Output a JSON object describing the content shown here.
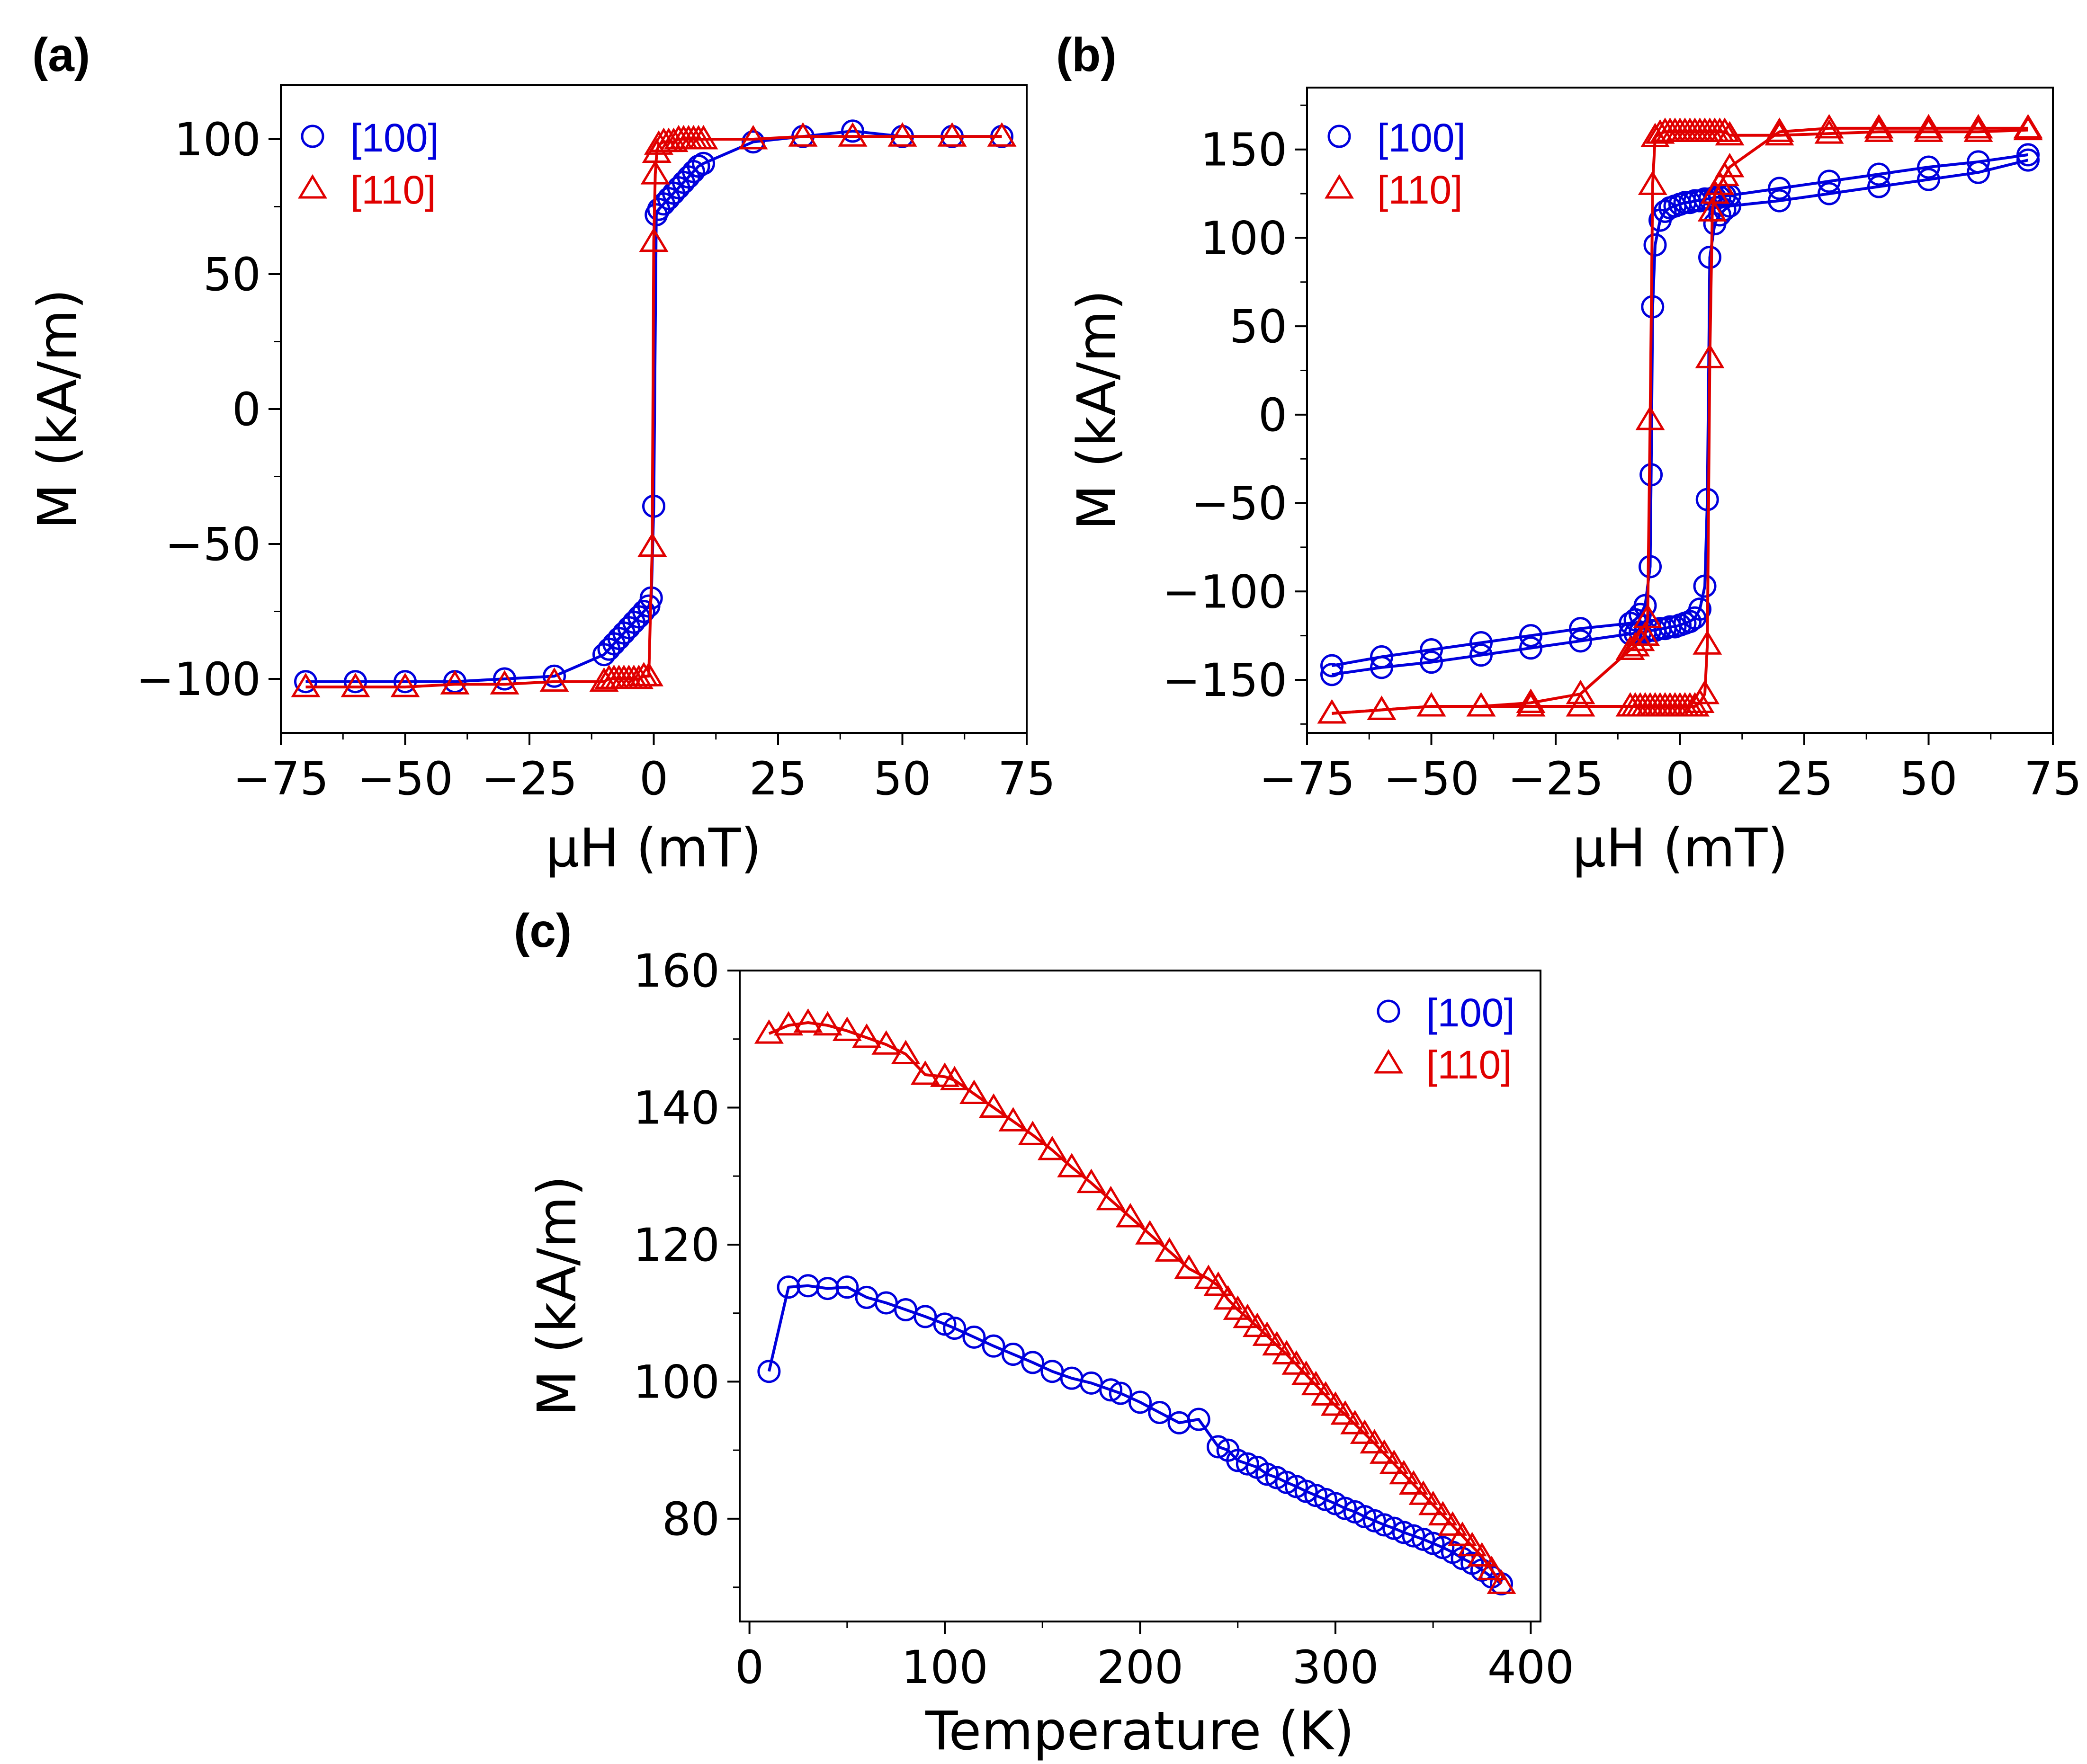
{
  "chart_data": [
    {
      "type": "line",
      "panel_label": "(a)",
      "xlabel": "μH (mT)",
      "ylabel": "M (kA/m)",
      "xlim": [
        -75,
        75
      ],
      "ylim": [
        -120,
        120
      ],
      "xticks": [
        -75,
        -50,
        -25,
        0,
        25,
        50,
        75
      ],
      "xtick_labels": [
        "−75",
        "−50",
        "−25",
        "0",
        "25",
        "50",
        "75"
      ],
      "yticks": [
        -100,
        -50,
        0,
        50,
        100
      ],
      "ytick_labels": [
        "−100",
        "−50",
        "0",
        "50",
        "100"
      ],
      "legend_position": "top-left",
      "series": [
        {
          "name": "[100]",
          "color": "#0000dd",
          "marker": "circle",
          "x": [
            -70,
            -60,
            -50,
            -40,
            -30,
            -20,
            -10,
            -9,
            -8,
            -7,
            -6,
            -5,
            -4,
            -3,
            -2,
            -1,
            -0.5,
            0,
            0.5,
            1,
            2,
            3,
            4,
            5,
            6,
            7,
            8,
            9,
            10,
            20,
            30,
            40,
            50,
            60,
            70
          ],
          "y": [
            -101,
            -101,
            -101,
            -101,
            -100,
            -99,
            -91,
            -89,
            -87,
            -85,
            -83,
            -81,
            -79,
            -77,
            -75,
            -73,
            -70,
            -36,
            72,
            74,
            76,
            78,
            80,
            82,
            84,
            86,
            88,
            90,
            91,
            99,
            101,
            103,
            101,
            101,
            101
          ]
        },
        {
          "name": "[110]",
          "color": "#e00000",
          "marker": "triangle",
          "x": [
            -70,
            -60,
            -50,
            -40,
            -30,
            -20,
            -10,
            -9,
            -8,
            -7,
            -6,
            -5,
            -4,
            -3,
            -2,
            -1,
            -0.3,
            0,
            0.3,
            0.6,
            1,
            2,
            3,
            4,
            5,
            6,
            7,
            8,
            9,
            10,
            20,
            30,
            40,
            50,
            60,
            70
          ],
          "y": [
            -103,
            -103,
            -103,
            -102,
            -102,
            -101,
            -101,
            -100,
            -100,
            -100,
            -100,
            -100,
            -100,
            -100,
            -99,
            -99,
            -51,
            62,
            87,
            95,
            98,
            99,
            99,
            99,
            100,
            100,
            100,
            100,
            100,
            100,
            100,
            101,
            101,
            101,
            101,
            101
          ]
        }
      ]
    },
    {
      "type": "line",
      "panel_label": "(b)",
      "xlabel": "μH (mT)",
      "ylabel": "M (kA/m)",
      "xlim": [
        -75,
        75
      ],
      "ylim": [
        -180,
        185
      ],
      "xticks": [
        -75,
        -50,
        -25,
        0,
        25,
        50,
        75
      ],
      "xtick_labels": [
        "−75",
        "−50",
        "−25",
        "0",
        "25",
        "50",
        "75"
      ],
      "yticks": [
        -150,
        -100,
        -50,
        0,
        50,
        100,
        150
      ],
      "ytick_labels": [
        "−150",
        "−100",
        "−50",
        "0",
        "50",
        "100",
        "150"
      ],
      "legend_position": "top-left",
      "series": [
        {
          "name": "[100]",
          "color": "#0000dd",
          "marker": "circle",
          "branches": [
            {
              "x": [
                70,
                60,
                50,
                40,
                30,
                20,
                10,
                9,
                8,
                7,
                6,
                5,
                4,
                3,
                2,
                1,
                0,
                -1,
                -2,
                -3,
                -4,
                -5,
                -5.5,
                -5.8,
                -6,
                -7,
                -8,
                -9,
                -10,
                -20,
                -30,
                -40,
                -50,
                -60,
                -70
              ],
              "y": [
                147,
                143,
                140,
                136,
                132,
                128,
                124,
                124,
                123,
                123,
                122,
                122,
                121,
                121,
                120,
                120,
                119,
                118,
                117,
                115,
                110,
                96,
                61,
                -34,
                -86,
                -108,
                -113,
                -116,
                -118,
                -121,
                -125,
                -129,
                -133,
                -137,
                -142
              ]
            },
            {
              "x": [
                -70,
                -60,
                -50,
                -40,
                -30,
                -20,
                -10,
                -9,
                -8,
                -7,
                -6,
                -5,
                -4,
                -3,
                -2,
                -1,
                0,
                1,
                2,
                3,
                4,
                5,
                5.5,
                6,
                7,
                8,
                9,
                10,
                20,
                30,
                40,
                50,
                60,
                70
              ],
              "y": [
                -147,
                -143,
                -140,
                -136,
                -132,
                -128,
                -124,
                -124,
                -123,
                -123,
                -122,
                -122,
                -121,
                -121,
                -120,
                -120,
                -119,
                -118,
                -117,
                -115,
                -110,
                -97,
                -48,
                89,
                108,
                113,
                116,
                118,
                121,
                125,
                129,
                133,
                137,
                144
              ]
            }
          ]
        },
        {
          "name": "[110]",
          "color": "#e00000",
          "marker": "triangle",
          "branches": [
            {
              "x": [
                70,
                60,
                50,
                40,
                30,
                20,
                10,
                9,
                8,
                7,
                6,
                5,
                4,
                3,
                2,
                1,
                0,
                -1,
                -2,
                -3,
                -4,
                -5,
                -5.5,
                -6,
                -6.5,
                -7,
                -8,
                -9,
                -10,
                -20,
                -30,
                -40,
                -50,
                -60,
                -70
              ],
              "y": [
                161,
                160,
                160,
                160,
                159,
                158,
                158,
                160,
                160,
                160,
                160,
                160,
                160,
                160,
                160,
                160,
                160,
                160,
                160,
                160,
                159,
                157,
                130,
                -3,
                -115,
                -125,
                -128,
                -131,
                -133,
                -158,
                -163,
                -165,
                -165,
                -167,
                -169
              ]
            },
            {
              "x": [
                -70,
                -60,
                -50,
                -40,
                -30,
                -20,
                -10,
                -9,
                -8,
                -7,
                -6,
                -5,
                -4,
                -3,
                -2,
                -1,
                0,
                1,
                2,
                3,
                4,
                5,
                5.5,
                6,
                6.5,
                7,
                8,
                9,
                10,
                20,
                30,
                40,
                50,
                60,
                70
              ],
              "y": [
                -169,
                -167,
                -165,
                -165,
                -165,
                -165,
                -165,
                -165,
                -165,
                -165,
                -165,
                -165,
                -165,
                -165,
                -165,
                -165,
                -165,
                -165,
                -165,
                -165,
                -163,
                -158,
                -130,
                32,
                115,
                125,
                130,
                135,
                140,
                160,
                162,
                162,
                162,
                162,
                162
              ]
            }
          ]
        }
      ]
    },
    {
      "type": "line",
      "panel_label": "(c)",
      "xlabel": "Temperature (K)",
      "ylabel": "M (kA/m)",
      "xlim": [
        -5,
        405
      ],
      "ylim": [
        65,
        160
      ],
      "xticks": [
        0,
        100,
        200,
        300,
        400
      ],
      "xtick_labels": [
        "0",
        "100",
        "200",
        "300",
        "400"
      ],
      "yticks": [
        80,
        100,
        120,
        140,
        160
      ],
      "ytick_labels": [
        "80",
        "100",
        "120",
        "140",
        "160"
      ],
      "legend_position": "top-right",
      "series": [
        {
          "name": "[100]",
          "color": "#0000dd",
          "marker": "circle",
          "x": [
            10,
            20,
            30,
            40,
            50,
            60,
            70,
            80,
            90,
            100,
            105,
            115,
            125,
            135,
            145,
            155,
            165,
            175,
            185,
            190,
            200,
            210,
            220,
            230,
            240,
            245,
            250,
            255,
            260,
            265,
            270,
            275,
            280,
            285,
            290,
            295,
            300,
            305,
            310,
            315,
            320,
            325,
            330,
            335,
            340,
            345,
            350,
            355,
            360,
            365,
            370,
            375,
            380,
            385
          ],
          "y": [
            101.5,
            113.8,
            114,
            113.6,
            113.8,
            112.3,
            111.5,
            110.5,
            109.5,
            108.4,
            107.8,
            106.5,
            105.2,
            104,
            102.8,
            101.5,
            100.5,
            99.8,
            98.8,
            98.3,
            97,
            95.5,
            94,
            94.5,
            90.5,
            90,
            88.5,
            88,
            87.5,
            86.5,
            86,
            85.3,
            84.7,
            84,
            83.4,
            82.8,
            82.2,
            81.5,
            81,
            80.3,
            79.7,
            79.1,
            78.6,
            78,
            77.5,
            77,
            76.4,
            75.8,
            75.1,
            74.2,
            73.5,
            72.5,
            71.5,
            70.5
          ]
        },
        {
          "name": "[110]",
          "color": "#e00000",
          "marker": "triangle",
          "x": [
            10,
            20,
            30,
            40,
            50,
            60,
            70,
            80,
            90,
            100,
            105,
            115,
            125,
            135,
            145,
            155,
            165,
            175,
            185,
            195,
            205,
            215,
            225,
            235,
            240,
            245,
            250,
            255,
            260,
            265,
            270,
            275,
            280,
            285,
            290,
            295,
            300,
            305,
            310,
            315,
            320,
            325,
            330,
            335,
            340,
            345,
            350,
            355,
            360,
            365,
            370,
            375,
            380,
            385
          ],
          "y": [
            150.8,
            152,
            152.4,
            152,
            151.2,
            150.2,
            149.2,
            147.8,
            144.8,
            144.5,
            144,
            142,
            140,
            138,
            136,
            133.8,
            131.3,
            129,
            126.5,
            124,
            121.5,
            119,
            116.5,
            115,
            114,
            112,
            110.5,
            109.3,
            108,
            106.7,
            105.3,
            104,
            102.5,
            101,
            99.5,
            98,
            96.5,
            95.2,
            93.8,
            92.4,
            91,
            89.5,
            88,
            86.5,
            85,
            83.5,
            82,
            80.5,
            79,
            77.5,
            76,
            74.5,
            72.5,
            70.5
          ]
        }
      ]
    }
  ]
}
